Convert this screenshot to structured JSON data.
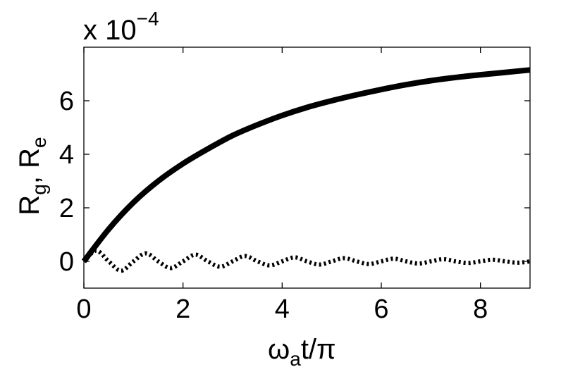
{
  "chart_data": {
    "type": "line",
    "xlabel": {
      "main": "ω",
      "sub": "a",
      "rest": "t/π"
    },
    "ylabel": {
      "part1": "R",
      "sub1": "g",
      "sep": ", ",
      "part2": "R",
      "sub2": "e"
    },
    "exponent_label": {
      "prefix": "x 10",
      "power": "−4"
    },
    "xlim": [
      0,
      9
    ],
    "ylim": [
      -1,
      8
    ],
    "x_ticks": [
      0,
      2,
      4,
      6,
      8
    ],
    "y_ticks": [
      0,
      2,
      4,
      6
    ],
    "x_tick_labels": [
      "0",
      "2",
      "4",
      "6",
      "8"
    ],
    "y_tick_labels": [
      "0",
      "2",
      "4",
      "6"
    ],
    "grid": false,
    "series": [
      {
        "style": "solid",
        "color": "#000000",
        "x": [
          0,
          0.5,
          1,
          1.5,
          2,
          2.5,
          3,
          3.5,
          4,
          4.5,
          5,
          5.5,
          6,
          6.5,
          7,
          7.5,
          8,
          8.5,
          9
        ],
        "y": [
          0,
          1.2,
          2.2,
          3.0,
          3.65,
          4.2,
          4.7,
          5.1,
          5.45,
          5.75,
          6.0,
          6.22,
          6.42,
          6.6,
          6.75,
          6.87,
          6.97,
          7.06,
          7.15
        ]
      },
      {
        "style": "dotted",
        "color": "#000000",
        "x": [
          0,
          0.25,
          0.5,
          0.75,
          1.0,
          1.25,
          1.5,
          1.75,
          2.0,
          2.25,
          2.5,
          2.75,
          3.0,
          3.25,
          3.5,
          3.75,
          4.0,
          4.25,
          4.5,
          4.75,
          5.0,
          5.25,
          5.5,
          5.75,
          6.0,
          6.25,
          6.5,
          6.75,
          7.0,
          7.25,
          7.5,
          7.75,
          8.0,
          8.25,
          8.5,
          8.75,
          9.0
        ],
        "y": [
          0.0,
          0.4,
          0.0,
          -0.35,
          0.0,
          0.3,
          0.0,
          -0.25,
          0.0,
          0.25,
          0.0,
          -0.2,
          0.0,
          0.2,
          0.0,
          -0.15,
          0.0,
          0.15,
          0.0,
          -0.12,
          0.0,
          0.12,
          0.0,
          -0.1,
          0.0,
          0.1,
          0.0,
          -0.08,
          0.0,
          0.08,
          0.0,
          -0.06,
          0.0,
          0.06,
          0.0,
          -0.05,
          0.0
        ]
      }
    ]
  }
}
